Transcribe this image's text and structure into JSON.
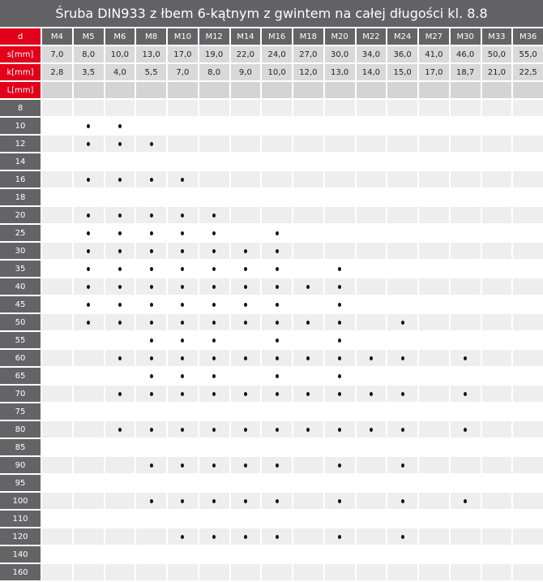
{
  "title": "Śruba DIN933 z łbem 6-kątnym z gwintem na całej długości kl. 8.8",
  "colors": {
    "accent_red": "#e2001a",
    "dark_gray": "#646466",
    "title_bg": "#636365"
  },
  "header": {
    "d_label": "d",
    "s_label": "s[mm]",
    "k_label": "k[mm]",
    "l_label": "L[mm]",
    "sizes": [
      "M4",
      "M5",
      "M6",
      "M8",
      "M10",
      "M12",
      "M14",
      "M16",
      "M18",
      "M20",
      "M22",
      "M24",
      "M27",
      "M30",
      "M33",
      "M36"
    ],
    "s": [
      "7,0",
      "8,0",
      "10,0",
      "13,0",
      "17,0",
      "19,0",
      "22,0",
      "24,0",
      "27,0",
      "30,0",
      "34,0",
      "36,0",
      "41,0",
      "46,0",
      "50,0",
      "55,0"
    ],
    "k": [
      "2,8",
      "3,5",
      "4,0",
      "5,5",
      "7,0",
      "8,0",
      "9,0",
      "10,0",
      "12,0",
      "13,0",
      "14,0",
      "15,0",
      "17,0",
      "18,7",
      "21,0",
      "22,5"
    ]
  },
  "availability_icon": "bullet-dot",
  "rows": [
    {
      "L": "8",
      "available": []
    },
    {
      "L": "10",
      "available": [
        "M5",
        "M6"
      ]
    },
    {
      "L": "12",
      "available": [
        "M5",
        "M6",
        "M8"
      ]
    },
    {
      "L": "14",
      "available": []
    },
    {
      "L": "16",
      "available": [
        "M5",
        "M6",
        "M8",
        "M10"
      ]
    },
    {
      "L": "18",
      "available": []
    },
    {
      "L": "20",
      "available": [
        "M5",
        "M6",
        "M8",
        "M10",
        "M12"
      ]
    },
    {
      "L": "25",
      "available": [
        "M5",
        "M6",
        "M8",
        "M10",
        "M12",
        "M16"
      ]
    },
    {
      "L": "30",
      "available": [
        "M5",
        "M6",
        "M8",
        "M10",
        "M12",
        "M14",
        "M16"
      ]
    },
    {
      "L": "35",
      "available": [
        "M5",
        "M6",
        "M8",
        "M10",
        "M12",
        "M14",
        "M16",
        "M20"
      ]
    },
    {
      "L": "40",
      "available": [
        "M5",
        "M6",
        "M8",
        "M10",
        "M12",
        "M14",
        "M16",
        "M18",
        "M20"
      ]
    },
    {
      "L": "45",
      "available": [
        "M5",
        "M6",
        "M8",
        "M10",
        "M12",
        "M14",
        "M16",
        "M20"
      ]
    },
    {
      "L": "50",
      "available": [
        "M5",
        "M6",
        "M8",
        "M10",
        "M12",
        "M14",
        "M16",
        "M18",
        "M20",
        "M24"
      ]
    },
    {
      "L": "55",
      "available": [
        "M8",
        "M10",
        "M12",
        "M16",
        "M20"
      ]
    },
    {
      "L": "60",
      "available": [
        "M6",
        "M8",
        "M10",
        "M12",
        "M14",
        "M16",
        "M18",
        "M20",
        "M22",
        "M24",
        "M30"
      ]
    },
    {
      "L": "65",
      "available": [
        "M8",
        "M10",
        "M12",
        "M16",
        "M20"
      ]
    },
    {
      "L": "70",
      "available": [
        "M6",
        "M8",
        "M10",
        "M12",
        "M14",
        "M16",
        "M18",
        "M20",
        "M22",
        "M24",
        "M30"
      ]
    },
    {
      "L": "75",
      "available": []
    },
    {
      "L": "80",
      "available": [
        "M6",
        "M8",
        "M10",
        "M12",
        "M14",
        "M16",
        "M18",
        "M20",
        "M22",
        "M24",
        "M30"
      ]
    },
    {
      "L": "85",
      "available": []
    },
    {
      "L": "90",
      "available": [
        "M8",
        "M10",
        "M12",
        "M14",
        "M16",
        "M20",
        "M24"
      ]
    },
    {
      "L": "95",
      "available": []
    },
    {
      "L": "100",
      "available": [
        "M8",
        "M10",
        "M12",
        "M14",
        "M16",
        "M20",
        "M24",
        "M30"
      ]
    },
    {
      "L": "110",
      "available": []
    },
    {
      "L": "120",
      "available": [
        "M10",
        "M12",
        "M14",
        "M16",
        "M20",
        "M24"
      ]
    },
    {
      "L": "140",
      "available": []
    },
    {
      "L": "160",
      "available": []
    }
  ]
}
